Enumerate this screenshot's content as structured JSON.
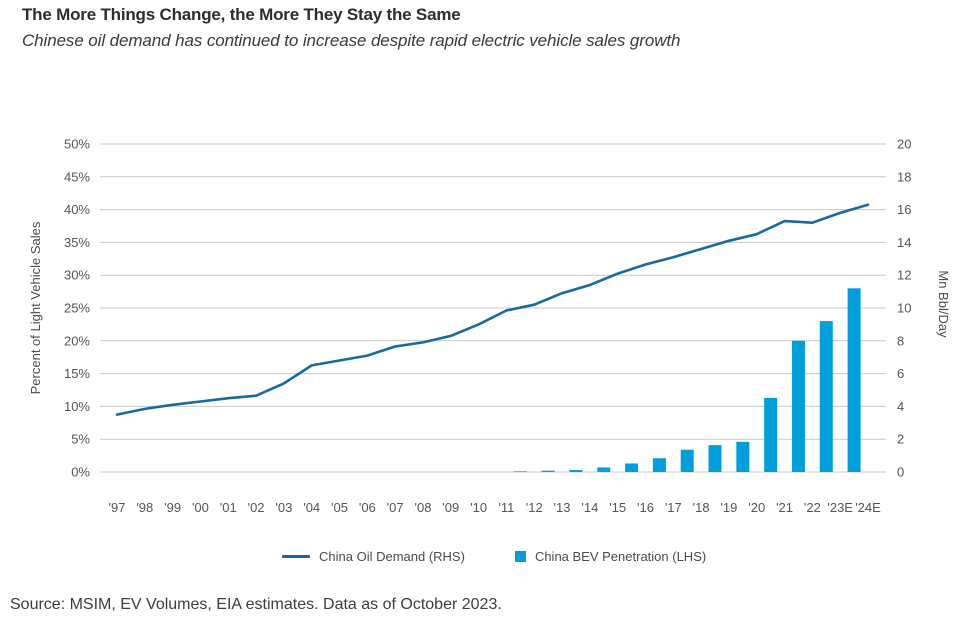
{
  "header": {
    "title": "The More Things Change, the More They Stay the Same",
    "subtitle": "Chinese oil demand has continued to increase despite rapid electric vehicle sales growth"
  },
  "legend": {
    "items": [
      {
        "marker": "line-marker",
        "label": "China Oil Demand (RHS)",
        "color": "#17699e"
      },
      {
        "marker": "bar-marker",
        "label": "China BEV Penetration (LHS)",
        "color": "#009fdb"
      }
    ]
  },
  "source": "Source: MSIM, EV Volumes, EIA estimates. Data as of October 2023.",
  "colors": {
    "oil_line": "#17699e",
    "bev_bar": "#009fdb",
    "gridline": "#c8c8c8",
    "tick_text": "#54555a",
    "axis_title_text": "#4a4b50"
  },
  "chart_data": {
    "type": "combo-bar-line",
    "categories": [
      "'97",
      "'98",
      "'99",
      "'00",
      "'01",
      "'02",
      "'03",
      "'04",
      "'05",
      "'06",
      "'07",
      "'08",
      "'09",
      "'10",
      "'11",
      "'12",
      "'13",
      "'14",
      "'15",
      "'16",
      "'17",
      "'18",
      "'19",
      "'20",
      "'21",
      "'22",
      "'23E",
      "'24E"
    ],
    "series": [
      {
        "name": "China Oil Demand (RHS)",
        "type": "line",
        "axis": "right",
        "values": [
          3.5,
          3.85,
          4.1,
          4.3,
          4.5,
          4.65,
          5.4,
          6.5,
          6.8,
          7.1,
          7.65,
          7.9,
          8.3,
          9.0,
          9.85,
          10.2,
          10.9,
          11.4,
          12.1,
          12.65,
          13.1,
          13.6,
          14.1,
          14.5,
          15.3,
          15.2,
          15.8,
          16.3
        ]
      },
      {
        "name": "China BEV Penetration (LHS)",
        "type": "bar",
        "axis": "left",
        "values": [
          null,
          null,
          null,
          null,
          null,
          null,
          null,
          null,
          null,
          null,
          null,
          null,
          null,
          null,
          null,
          0.1,
          0.2,
          0.3,
          0.7,
          1.3,
          2.1,
          3.4,
          4.1,
          4.6,
          11.3,
          20,
          23,
          28
        ]
      }
    ],
    "left_axis": {
      "label": "Percent of Light Vehicle Sales",
      "range": [
        0,
        50
      ],
      "tick_step": 5,
      "tick_labels": [
        "0%",
        "5%",
        "10%",
        "15%",
        "20%",
        "25%",
        "30%",
        "35%",
        "40%",
        "45%",
        "50%"
      ]
    },
    "right_axis": {
      "label": "Mn Bbl/Day",
      "range": [
        0,
        20
      ],
      "tick_step": 2,
      "tick_labels": [
        "0",
        "2",
        "4",
        "6",
        "8",
        "10",
        "12",
        "14",
        "16",
        "18",
        "20"
      ]
    },
    "grid": "horizontal",
    "legend_position": "bottom"
  }
}
